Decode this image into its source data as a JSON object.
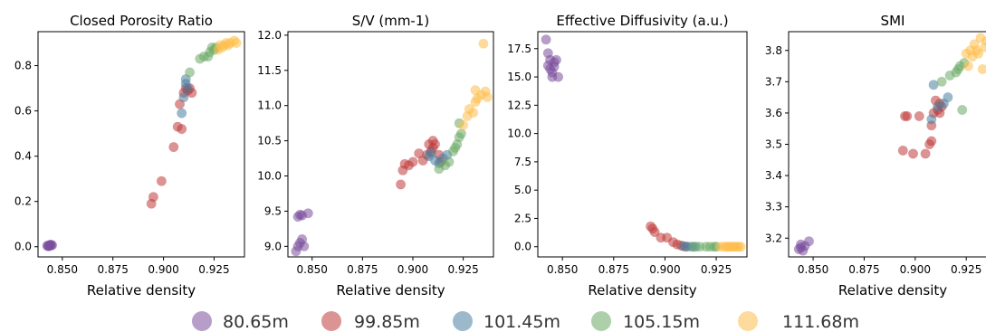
{
  "colors": {
    "80.65m": "#7b4f9d",
    "99.85m": "#c03a3a",
    "101.45m": "#4a7fa0",
    "105.15m": "#6aaa64",
    "111.68m": "#fdbd4a",
    "dark_red": "#8b0000"
  },
  "legend": {
    "placement": "bottom",
    "entries": [
      {
        "label": "80.65m",
        "color": "#7b4f9d"
      },
      {
        "label": "99.85m",
        "color": "#c03a3a"
      },
      {
        "label": "101.45m",
        "color": "#4a7fa0"
      },
      {
        "label": "105.15m",
        "color": "#6aaa64"
      },
      {
        "label": "111.68m",
        "color": "#fdbd4a"
      }
    ]
  },
  "chart_data": [
    {
      "type": "scatter",
      "title": "Closed Porosity Ratio",
      "xlabel": "Relative density",
      "ylabel": "",
      "xlim": [
        0.838,
        0.94
      ],
      "ylim": [
        -0.045,
        0.95
      ],
      "xticks": [
        "0.850",
        "0.875",
        "0.900",
        "0.925"
      ],
      "xtick_values": [
        0.85,
        0.875,
        0.9,
        0.925
      ],
      "yticks": [
        "0.0",
        "0.2",
        "0.4",
        "0.6",
        "0.8"
      ],
      "ytick_values": [
        0.0,
        0.2,
        0.4,
        0.6,
        0.8
      ],
      "series": [
        {
          "name": "80.65m",
          "points": [
            [
              0.843,
              0.005
            ],
            [
              0.844,
              0.008
            ],
            [
              0.8435,
              0.003
            ],
            [
              0.8445,
              0.006
            ],
            [
              0.8425,
              0.004
            ],
            [
              0.845,
              0.007
            ],
            [
              0.8432,
              0.002
            ],
            [
              0.8442,
              0.009
            ]
          ]
        },
        {
          "name": "99.85m",
          "points": [
            [
              0.894,
              0.19
            ],
            [
              0.895,
              0.22
            ],
            [
              0.899,
              0.29
            ],
            [
              0.905,
              0.44
            ],
            [
              0.907,
              0.53
            ],
            [
              0.908,
              0.63
            ],
            [
              0.909,
              0.52
            ],
            [
              0.91,
              0.68
            ],
            [
              0.911,
              0.7
            ],
            [
              0.912,
              0.69
            ],
            [
              0.913,
              0.7
            ],
            [
              0.914,
              0.68
            ]
          ]
        },
        {
          "name": "101.45m",
          "points": [
            [
              0.909,
              0.59
            ],
            [
              0.91,
              0.66
            ],
            [
              0.911,
              0.72
            ],
            [
              0.911,
              0.74
            ],
            [
              0.912,
              0.7
            ]
          ]
        },
        {
          "name": "105.15m",
          "points": [
            [
              0.913,
              0.77
            ],
            [
              0.918,
              0.83
            ],
            [
              0.92,
              0.84
            ],
            [
              0.922,
              0.84
            ],
            [
              0.923,
              0.86
            ],
            [
              0.924,
              0.88
            ],
            [
              0.925,
              0.87
            ],
            [
              0.926,
              0.88
            ]
          ]
        },
        {
          "name": "111.68m",
          "points": [
            [
              0.927,
              0.87
            ],
            [
              0.928,
              0.89
            ],
            [
              0.929,
              0.88
            ],
            [
              0.93,
              0.89
            ],
            [
              0.931,
              0.9
            ],
            [
              0.932,
              0.89
            ],
            [
              0.933,
              0.9
            ],
            [
              0.935,
              0.91
            ],
            [
              0.936,
              0.9
            ]
          ]
        }
      ]
    },
    {
      "type": "scatter",
      "title": "S/V (mm-1)",
      "xlabel": "Relative density",
      "ylabel": "",
      "xlim": [
        0.838,
        0.94
      ],
      "ylim": [
        8.85,
        12.05
      ],
      "xticks": [
        "0.850",
        "0.875",
        "0.900",
        "0.925"
      ],
      "xtick_values": [
        0.85,
        0.875,
        0.9,
        0.925
      ],
      "yticks": [
        "9.0",
        "9.5",
        "10.0",
        "10.5",
        "11.0",
        "11.5",
        "12.0"
      ],
      "ytick_values": [
        9.0,
        9.5,
        10.0,
        10.5,
        11.0,
        11.5,
        12.0
      ],
      "series": [
        {
          "name": "80.65m",
          "points": [
            [
              0.842,
              8.93
            ],
            [
              0.843,
              9.0
            ],
            [
              0.844,
              9.05
            ],
            [
              0.845,
              9.1
            ],
            [
              0.846,
              9.0
            ],
            [
              0.843,
              9.42
            ],
            [
              0.844,
              9.45
            ],
            [
              0.845,
              9.44
            ],
            [
              0.848,
              9.47
            ]
          ]
        },
        {
          "name": "99.85m",
          "points": [
            [
              0.894,
              9.88
            ],
            [
              0.895,
              10.08
            ],
            [
              0.896,
              10.17
            ],
            [
              0.898,
              10.15
            ],
            [
              0.9,
              10.2
            ],
            [
              0.903,
              10.32
            ],
            [
              0.905,
              10.22
            ],
            [
              0.907,
              10.3
            ],
            [
              0.908,
              10.45
            ],
            [
              0.909,
              10.35
            ],
            [
              0.91,
              10.4
            ],
            [
              0.91,
              10.5
            ],
            [
              0.911,
              10.45
            ],
            [
              0.913,
              10.3
            ],
            [
              0.914,
              10.2
            ]
          ]
        },
        {
          "name": "101.45m",
          "points": [
            [
              0.908,
              10.28
            ],
            [
              0.909,
              10.33
            ],
            [
              0.911,
              10.22
            ],
            [
              0.913,
              10.18
            ],
            [
              0.915,
              10.25
            ],
            [
              0.917,
              10.3
            ]
          ]
        },
        {
          "name": "105.15m",
          "points": [
            [
              0.913,
              10.1
            ],
            [
              0.916,
              10.15
            ],
            [
              0.918,
              10.2
            ],
            [
              0.92,
              10.35
            ],
            [
              0.921,
              10.4
            ],
            [
              0.922,
              10.45
            ],
            [
              0.923,
              10.55
            ],
            [
              0.924,
              10.6
            ],
            [
              0.923,
              10.75
            ]
          ]
        },
        {
          "name": "111.68m",
          "points": [
            [
              0.925,
              10.72
            ],
            [
              0.927,
              10.85
            ],
            [
              0.928,
              10.95
            ],
            [
              0.93,
              10.9
            ],
            [
              0.931,
              11.05
            ],
            [
              0.932,
              11.1
            ],
            [
              0.934,
              11.15
            ],
            [
              0.936,
              11.2
            ],
            [
              0.937,
              11.12
            ],
            [
              0.931,
              11.22
            ],
            [
              0.935,
              11.88
            ]
          ]
        }
      ]
    },
    {
      "type": "scatter",
      "title": "Effective Diffusivity (a.u.)",
      "xlabel": "Relative density",
      "ylabel": "",
      "xlim": [
        0.838,
        0.94
      ],
      "ylim": [
        -0.9,
        19.0
      ],
      "xticks": [
        "0.850",
        "0.875",
        "0.900",
        "0.925"
      ],
      "xtick_values": [
        0.85,
        0.875,
        0.9,
        0.925
      ],
      "yticks": [
        "0.0",
        "2.5",
        "5.0",
        "7.5",
        "10.0",
        "12.5",
        "15.0",
        "17.5"
      ],
      "ytick_values": [
        0.0,
        2.5,
        5.0,
        7.5,
        10.0,
        12.5,
        15.0,
        17.5
      ],
      "series": [
        {
          "name": "80.65m",
          "points": [
            [
              0.842,
              18.3
            ],
            [
              0.843,
              17.1
            ],
            [
              0.844,
              16.5
            ],
            [
              0.843,
              16.0
            ],
            [
              0.844,
              15.7
            ],
            [
              0.845,
              15.4
            ],
            [
              0.845,
              15.0
            ],
            [
              0.846,
              15.9
            ],
            [
              0.847,
              16.5
            ],
            [
              0.848,
              15.0
            ],
            [
              0.846,
              16.3
            ]
          ]
        },
        {
          "name": "99.85m",
          "points": [
            [
              0.893,
              1.8
            ],
            [
              0.894,
              1.6
            ],
            [
              0.895,
              1.3
            ],
            [
              0.898,
              0.8
            ],
            [
              0.901,
              0.8
            ],
            [
              0.904,
              0.4
            ],
            [
              0.906,
              0.2
            ],
            [
              0.908,
              0.1
            ],
            [
              0.91,
              0.0
            ]
          ]
        },
        {
          "name": "101.45m",
          "points": [
            [
              0.909,
              0.05
            ],
            [
              0.911,
              0.02
            ],
            [
              0.913,
              0.0
            ],
            [
              0.915,
              0.0
            ]
          ]
        },
        {
          "name": "105.15m",
          "points": [
            [
              0.914,
              0.0
            ],
            [
              0.917,
              0.0
            ],
            [
              0.92,
              0.0
            ],
            [
              0.922,
              0.0
            ],
            [
              0.924,
              0.0
            ],
            [
              0.925,
              0.0
            ]
          ]
        },
        {
          "name": "111.68m",
          "points": [
            [
              0.927,
              0.0
            ],
            [
              0.929,
              0.0
            ],
            [
              0.93,
              0.0
            ],
            [
              0.931,
              0.0
            ],
            [
              0.932,
              0.0
            ],
            [
              0.933,
              0.0
            ],
            [
              0.934,
              0.0
            ],
            [
              0.935,
              0.0
            ],
            [
              0.936,
              0.0
            ],
            [
              0.937,
              0.0
            ]
          ]
        }
      ]
    },
    {
      "type": "scatter",
      "title": "SMI",
      "xlabel": "Relative density",
      "ylabel": "",
      "xlim": [
        0.838,
        0.94
      ],
      "ylim": [
        3.14,
        3.86
      ],
      "xticks": [
        "0.850",
        "0.875",
        "0.900",
        "0.925"
      ],
      "xtick_values": [
        0.85,
        0.875,
        0.9,
        0.925
      ],
      "yticks": [
        "3.2",
        "3.3",
        "3.4",
        "3.5",
        "3.6",
        "3.7",
        "3.8"
      ],
      "ytick_values": [
        3.2,
        3.3,
        3.4,
        3.5,
        3.6,
        3.7,
        3.8
      ],
      "series": [
        {
          "name": "80.65m",
          "points": [
            [
              0.843,
              3.165
            ],
            [
              0.844,
              3.17
            ],
            [
              0.845,
              3.16
            ],
            [
              0.846,
              3.175
            ],
            [
              0.848,
              3.19
            ],
            [
              0.844,
              3.18
            ]
          ]
        },
        {
          "name": "99.85m",
          "points": [
            [
              0.894,
              3.48
            ],
            [
              0.895,
              3.59
            ],
            [
              0.896,
              3.59
            ],
            [
              0.899,
              3.47
            ],
            [
              0.902,
              3.59
            ],
            [
              0.905,
              3.47
            ],
            [
              0.907,
              3.5
            ],
            [
              0.908,
              3.51
            ],
            [
              0.908,
              3.56
            ],
            [
              0.909,
              3.6
            ],
            [
              0.91,
              3.64
            ],
            [
              0.911,
              3.61
            ],
            [
              0.912,
              3.6
            ],
            [
              0.913,
              3.62
            ],
            [
              0.912,
              3.63
            ]
          ]
        },
        {
          "name": "101.45m",
          "points": [
            [
              0.908,
              3.58
            ],
            [
              0.909,
              3.69
            ],
            [
              0.911,
              3.62
            ],
            [
              0.914,
              3.63
            ],
            [
              0.916,
              3.65
            ]
          ]
        },
        {
          "name": "105.15m",
          "points": [
            [
              0.913,
              3.7
            ],
            [
              0.917,
              3.72
            ],
            [
              0.92,
              3.73
            ],
            [
              0.921,
              3.74
            ],
            [
              0.922,
              3.75
            ],
            [
              0.923,
              3.61
            ],
            [
              0.924,
              3.76
            ]
          ]
        },
        {
          "name": "111.68m",
          "points": [
            [
              0.925,
              3.79
            ],
            [
              0.926,
              3.75
            ],
            [
              0.927,
              3.8
            ],
            [
              0.928,
              3.78
            ],
            [
              0.929,
              3.82
            ],
            [
              0.93,
              3.8
            ],
            [
              0.931,
              3.79
            ],
            [
              0.932,
              3.84
            ],
            [
              0.934,
              3.81
            ],
            [
              0.935,
              3.83
            ],
            [
              0.937,
              3.77
            ],
            [
              0.933,
              3.74
            ]
          ]
        }
      ]
    }
  ]
}
